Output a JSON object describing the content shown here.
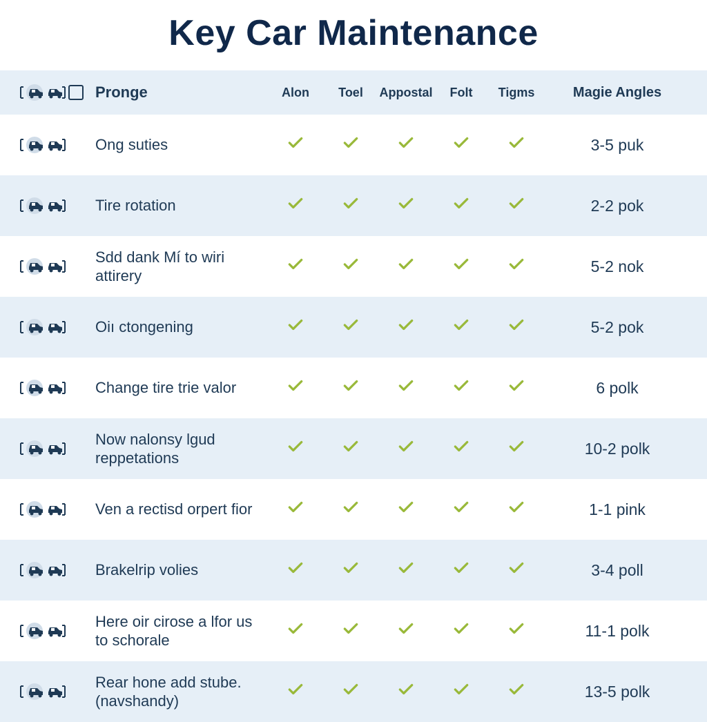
{
  "colors": {
    "title": "#10284a",
    "text": "#1f3a55",
    "stripe": "#e6eff7",
    "stripe_alt": "#ffffff",
    "check": "#99b93a",
    "icon_dark": "#1f3a55",
    "icon_light_bg": "#d0dce8"
  },
  "title": "Key Car Maintenance",
  "columns": {
    "label": "Pronge",
    "c1": "Alon",
    "c2": "Toel",
    "c3": "Appostal",
    "c4": "Folt",
    "c5": "Tigms",
    "value": "Magie Angles"
  },
  "rows": [
    {
      "label": "Ong suties",
      "checks": [
        true,
        true,
        true,
        true,
        true
      ],
      "value": "3-5 puk"
    },
    {
      "label": "Tire rotation",
      "checks": [
        true,
        true,
        true,
        true,
        true
      ],
      "value": "2-2 pok"
    },
    {
      "label": "Sdd dank Mí to wiri attirery",
      "checks": [
        true,
        true,
        true,
        true,
        true
      ],
      "value": "5-2 nok"
    },
    {
      "label": "Oiı ctongening",
      "checks": [
        true,
        true,
        true,
        true,
        true
      ],
      "value": "5-2 pok"
    },
    {
      "label": "Change tire trie valor",
      "checks": [
        true,
        true,
        true,
        true,
        true
      ],
      "value": "6 polk"
    },
    {
      "label": "Now nalonsy lgud reppetations",
      "checks": [
        true,
        true,
        true,
        true,
        true
      ],
      "value": "10-2 polk"
    },
    {
      "label": "Ven a rectisd orpert fior",
      "checks": [
        true,
        true,
        true,
        true,
        true
      ],
      "value": "1-1 pink"
    },
    {
      "label": "Brakelrip volies",
      "checks": [
        true,
        true,
        true,
        true,
        true
      ],
      "value": "3-4 poll"
    },
    {
      "label": "Here oir cirose a lfor us to schorale",
      "checks": [
        true,
        true,
        true,
        true,
        true
      ],
      "value": "11-1 polk"
    },
    {
      "label": "Rear hone add stube. (navshandy)",
      "checks": [
        true,
        true,
        true,
        true,
        true
      ],
      "value": "13-5 polk"
    }
  ],
  "header_has_icon_box": true
}
